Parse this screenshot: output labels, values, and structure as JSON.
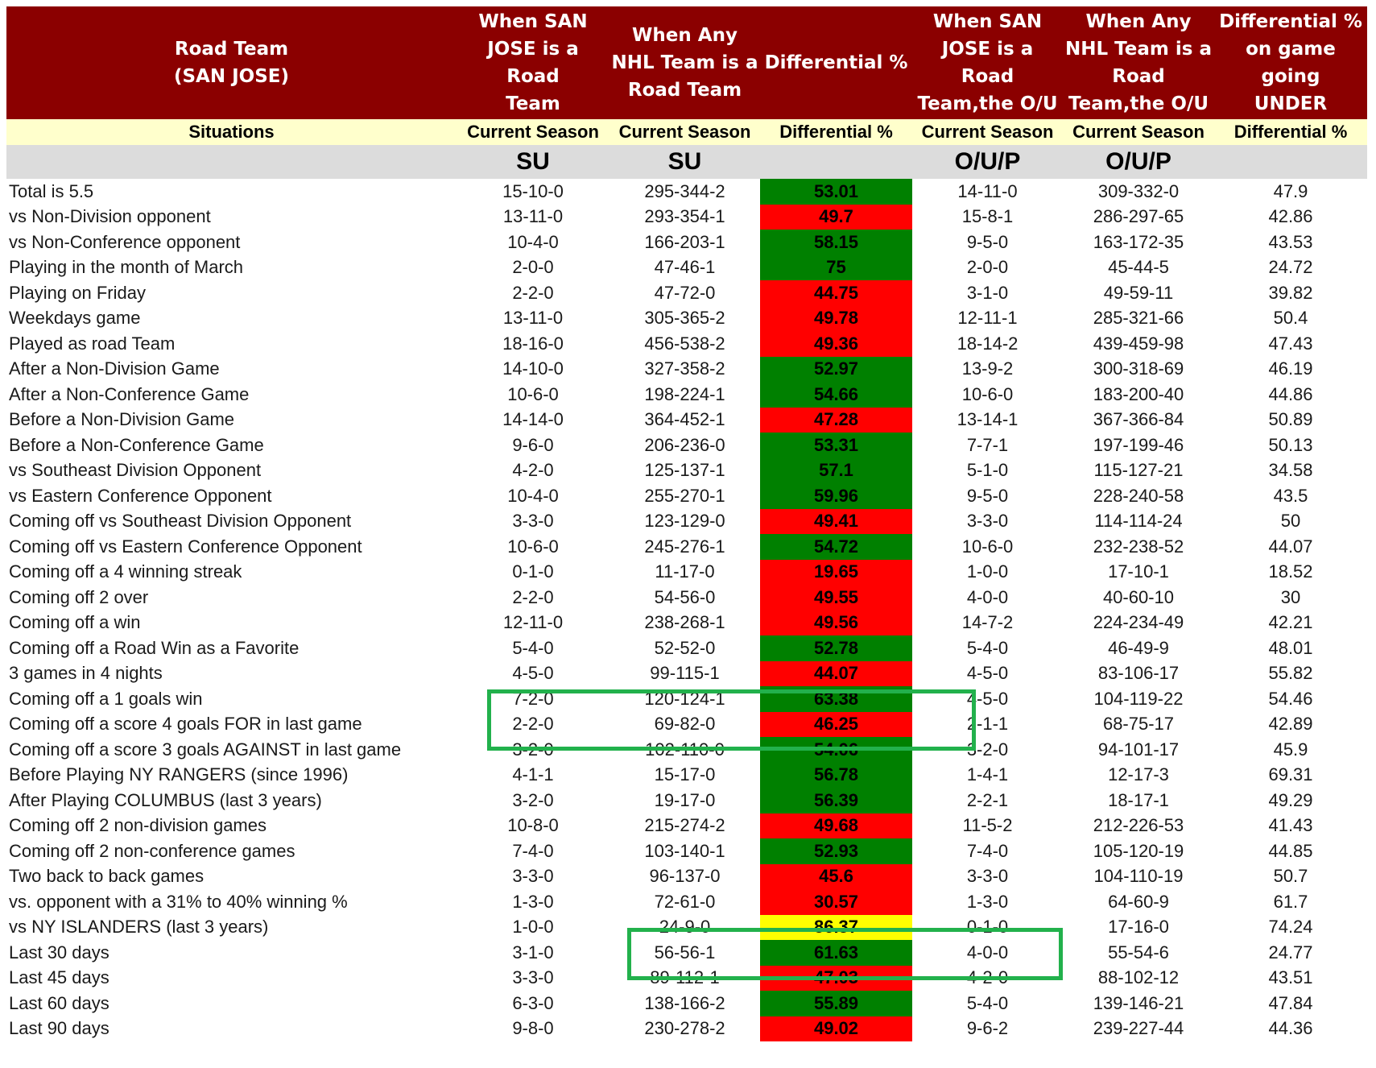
{
  "header": {
    "road_team": "Road Team\n(SAN JOSE)",
    "col_team_su": "When SAN\nJOSE is a Road\nTeam",
    "col_any_su": "When Any\nNHL Team is a\nRoad Team",
    "col_diff_su": "Differential %",
    "col_team_ou": "When SAN\nJOSE is a Road\nTeam,the O/U",
    "col_any_ou": "When Any\nNHL Team is a\nRoad\nTeam,the O/U",
    "col_diff_under": "Differential %\non game going\nUNDER"
  },
  "subheader": {
    "situations": "Situations",
    "team_su_season": "Current Season",
    "any_su_season": "Current Season",
    "diff_su": "Differential %",
    "team_ou_season": "Current Season",
    "any_ou_season": "Current Season",
    "diff_under": "Differential %"
  },
  "units": {
    "team_su": "SU",
    "any_su": "SU",
    "team_ou": "O/U/P",
    "any_ou": "O/U/P"
  },
  "colors": {
    "header_bg": "#8b0000",
    "subheader_bg": "#ffffcc",
    "units_bg": "#dcdcdc",
    "green": "#008000",
    "red": "#ff0000",
    "yellow": "#ffff00",
    "annotation_box": "#22b14c"
  },
  "rows": [
    {
      "situation": "Total is 5.5",
      "team_su": "15-10-0",
      "any_su": "295-344-2",
      "diff": "53.01",
      "color": "green",
      "team_ou": "14-11-0",
      "any_ou": "309-332-0",
      "under": "47.9"
    },
    {
      "situation": "vs Non-Division opponent",
      "team_su": "13-11-0",
      "any_su": "293-354-1",
      "diff": "49.7",
      "color": "red",
      "team_ou": "15-8-1",
      "any_ou": "286-297-65",
      "under": "42.86"
    },
    {
      "situation": "vs Non-Conference opponent",
      "team_su": "10-4-0",
      "any_su": "166-203-1",
      "diff": "58.15",
      "color": "green",
      "team_ou": "9-5-0",
      "any_ou": "163-172-35",
      "under": "43.53"
    },
    {
      "situation": "Playing in the month of March",
      "team_su": "2-0-0",
      "any_su": "47-46-1",
      "diff": "75",
      "color": "green",
      "team_ou": "2-0-0",
      "any_ou": "45-44-5",
      "under": "24.72"
    },
    {
      "situation": "Playing on Friday",
      "team_su": "2-2-0",
      "any_su": "47-72-0",
      "diff": "44.75",
      "color": "red",
      "team_ou": "3-1-0",
      "any_ou": "49-59-11",
      "under": "39.82"
    },
    {
      "situation": "Weekdays game",
      "team_su": "13-11-0",
      "any_su": "305-365-2",
      "diff": "49.78",
      "color": "red",
      "team_ou": "12-11-1",
      "any_ou": "285-321-66",
      "under": "50.4"
    },
    {
      "situation": "Played as road Team",
      "team_su": "18-16-0",
      "any_su": "456-538-2",
      "diff": "49.36",
      "color": "red",
      "team_ou": "18-14-2",
      "any_ou": "439-459-98",
      "under": "47.43"
    },
    {
      "situation": "After a Non-Division Game",
      "team_su": "14-10-0",
      "any_su": "327-358-2",
      "diff": "52.97",
      "color": "green",
      "team_ou": "13-9-2",
      "any_ou": "300-318-69",
      "under": "46.19"
    },
    {
      "situation": "After a Non-Conference Game",
      "team_su": "10-6-0",
      "any_su": "198-224-1",
      "diff": "54.66",
      "color": "green",
      "team_ou": "10-6-0",
      "any_ou": "183-200-40",
      "under": "44.86"
    },
    {
      "situation": "Before a Non-Division Game",
      "team_su": "14-14-0",
      "any_su": "364-452-1",
      "diff": "47.28",
      "color": "red",
      "team_ou": "13-14-1",
      "any_ou": "367-366-84",
      "under": "50.89"
    },
    {
      "situation": "Before a Non-Conference Game",
      "team_su": "9-6-0",
      "any_su": "206-236-0",
      "diff": "53.31",
      "color": "green",
      "team_ou": "7-7-1",
      "any_ou": "197-199-46",
      "under": "50.13"
    },
    {
      "situation": "vs Southeast Division Opponent",
      "team_su": "4-2-0",
      "any_su": "125-137-1",
      "diff": "57.1",
      "color": "green",
      "team_ou": "5-1-0",
      "any_ou": "115-127-21",
      "under": "34.58"
    },
    {
      "situation": "vs Eastern Conference Opponent",
      "team_su": "10-4-0",
      "any_su": "255-270-1",
      "diff": "59.96",
      "color": "green",
      "team_ou": "9-5-0",
      "any_ou": "228-240-58",
      "under": "43.5"
    },
    {
      "situation": "Coming off vs Southeast Division Opponent",
      "team_su": "3-3-0",
      "any_su": "123-129-0",
      "diff": "49.41",
      "color": "red",
      "team_ou": "3-3-0",
      "any_ou": "114-114-24",
      "under": "50"
    },
    {
      "situation": "Coming off vs Eastern Conference Opponent",
      "team_su": "10-6-0",
      "any_su": "245-276-1",
      "diff": "54.72",
      "color": "green",
      "team_ou": "10-6-0",
      "any_ou": "232-238-52",
      "under": "44.07"
    },
    {
      "situation": "Coming off a 4 winning streak",
      "team_su": "0-1-0",
      "any_su": "11-17-0",
      "diff": "19.65",
      "color": "red",
      "team_ou": "1-0-0",
      "any_ou": "17-10-1",
      "under": "18.52"
    },
    {
      "situation": "Coming off 2 over",
      "team_su": "2-2-0",
      "any_su": "54-56-0",
      "diff": "49.55",
      "color": "red",
      "team_ou": "4-0-0",
      "any_ou": "40-60-10",
      "under": "30"
    },
    {
      "situation": "Coming off a win",
      "team_su": "12-11-0",
      "any_su": "238-268-1",
      "diff": "49.56",
      "color": "red",
      "team_ou": "14-7-2",
      "any_ou": "224-234-49",
      "under": "42.21"
    },
    {
      "situation": "Coming off a Road Win as a Favorite",
      "team_su": "5-4-0",
      "any_su": "52-52-0",
      "diff": "52.78",
      "color": "green",
      "team_ou": "5-4-0",
      "any_ou": "46-49-9",
      "under": "48.01"
    },
    {
      "situation": "3 games in 4 nights",
      "team_su": "4-5-0",
      "any_su": "99-115-1",
      "diff": "44.07",
      "color": "red",
      "team_ou": "4-5-0",
      "any_ou": "83-106-17",
      "under": "55.82"
    },
    {
      "situation": "Coming off a 1 goals win",
      "team_su": "7-2-0",
      "any_su": "120-124-1",
      "diff": "63.38",
      "color": "green",
      "team_ou": "4-5-0",
      "any_ou": "104-119-22",
      "under": "54.46"
    },
    {
      "situation": "Coming off a score 4 goals FOR in last game",
      "team_su": "2-2-0",
      "any_su": "69-82-0",
      "diff": "46.25",
      "color": "red",
      "team_ou": "2-1-1",
      "any_ou": "68-75-17",
      "under": "42.89"
    },
    {
      "situation": "Coming off a score 3 goals AGAINST in last game",
      "team_su": "3-2-0",
      "any_su": "102-110-0",
      "diff": "54.06",
      "color": "green",
      "team_ou": "3-2-0",
      "any_ou": "94-101-17",
      "under": "45.9"
    },
    {
      "situation": "Before Playing NY RANGERS (since 1996)",
      "team_su": "4-1-1",
      "any_su": "15-17-0",
      "diff": "56.78",
      "color": "green",
      "team_ou": "1-4-1",
      "any_ou": "12-17-3",
      "under": "69.31"
    },
    {
      "situation": "After Playing COLUMBUS (last 3 years)",
      "team_su": "3-2-0",
      "any_su": "19-17-0",
      "diff": "56.39",
      "color": "green",
      "team_ou": "2-2-1",
      "any_ou": "18-17-1",
      "under": "49.29"
    },
    {
      "situation": "Coming off 2 non-division games",
      "team_su": "10-8-0",
      "any_su": "215-274-2",
      "diff": "49.68",
      "color": "red",
      "team_ou": "11-5-2",
      "any_ou": "212-226-53",
      "under": "41.43"
    },
    {
      "situation": "Coming off 2 non-conference games",
      "team_su": "7-4-0",
      "any_su": "103-140-1",
      "diff": "52.93",
      "color": "green",
      "team_ou": "7-4-0",
      "any_ou": "105-120-19",
      "under": "44.85"
    },
    {
      "situation": "Two back to back games",
      "team_su": "3-3-0",
      "any_su": "96-137-0",
      "diff": "45.6",
      "color": "red",
      "team_ou": "3-3-0",
      "any_ou": "104-110-19",
      "under": "50.7"
    },
    {
      "situation": "vs. opponent with a 31% to 40% winning %",
      "team_su": "1-3-0",
      "any_su": "72-61-0",
      "diff": "30.57",
      "color": "red",
      "team_ou": "1-3-0",
      "any_ou": "64-60-9",
      "under": "61.7"
    },
    {
      "situation": "vs NY ISLANDERS (last 3 years)",
      "team_su": "1-0-0",
      "any_su": "24-9-0",
      "diff": "86.37",
      "color": "yellow",
      "team_ou": "0-1-0",
      "any_ou": "17-16-0",
      "under": "74.24"
    },
    {
      "situation": "Last 30 days",
      "team_su": "3-1-0",
      "any_su": "56-56-1",
      "diff": "61.63",
      "color": "green",
      "team_ou": "4-0-0",
      "any_ou": "55-54-6",
      "under": "24.77"
    },
    {
      "situation": "Last 45 days",
      "team_su": "3-3-0",
      "any_su": "89-112-1",
      "diff": "47.03",
      "color": "red",
      "team_ou": "4-2-0",
      "any_ou": "88-102-12",
      "under": "43.51"
    },
    {
      "situation": "Last 60 days",
      "team_su": "6-3-0",
      "any_su": "138-166-2",
      "diff": "55.89",
      "color": "green",
      "team_ou": "5-4-0",
      "any_ou": "139-146-21",
      "under": "47.84"
    },
    {
      "situation": "Last 90 days",
      "team_su": "9-8-0",
      "any_su": "230-278-2",
      "diff": "49.02",
      "color": "red",
      "team_ou": "9-6-2",
      "any_ou": "239-227-44",
      "under": "44.36"
    }
  ]
}
